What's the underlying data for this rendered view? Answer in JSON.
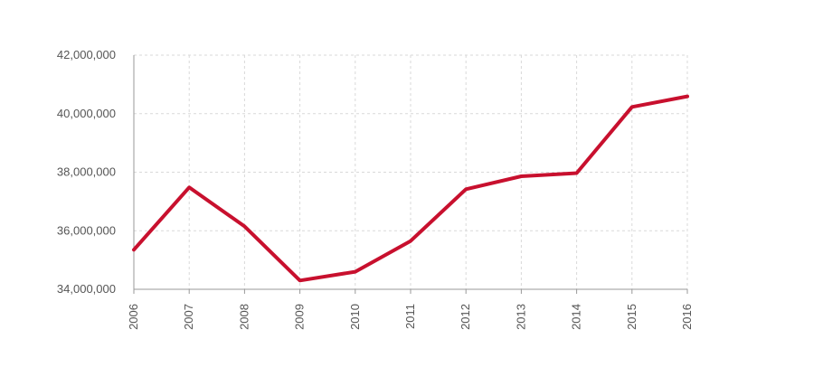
{
  "chart_data": {
    "type": "line",
    "title": "",
    "xlabel": "",
    "ylabel": "",
    "categories": [
      "2006",
      "2007",
      "2008",
      "2009",
      "2010",
      "2011",
      "2012",
      "2013",
      "2014",
      "2015",
      "2016"
    ],
    "series": [
      {
        "values": [
          35350000,
          37480000,
          36150000,
          34300000,
          34600000,
          35650000,
          37420000,
          37860000,
          37970000,
          40230000,
          40590000
        ],
        "color": "#c8102e"
      }
    ],
    "ylim": [
      34000000,
      42000000
    ],
    "y_ticks": [
      34000000,
      36000000,
      38000000,
      40000000,
      42000000
    ],
    "y_tick_labels": [
      "34,000,000",
      "36,000,000",
      "38,000,000",
      "40,000,000",
      "42,000,000"
    ],
    "grid": true,
    "legend": "none"
  }
}
